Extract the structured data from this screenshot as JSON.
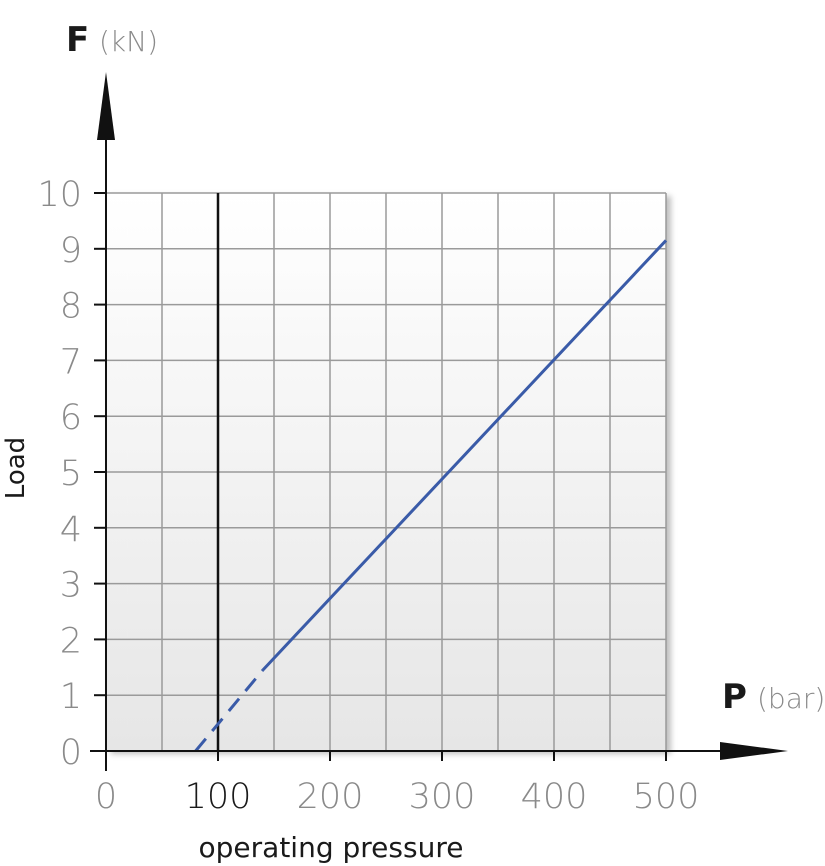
{
  "chart_data": {
    "type": "line",
    "y_axis_letter": "F",
    "y_axis_unit": "(kN)",
    "x_axis_letter": "P",
    "x_axis_unit": "(bar)",
    "ylabel": "Load",
    "xlabel": "operating pressure",
    "xlim": [
      0,
      500
    ],
    "ylim": [
      0,
      10
    ],
    "x_ticks": [
      "0",
      "100",
      "200",
      "300",
      "400",
      "500"
    ],
    "y_ticks": [
      "0",
      "1",
      "2",
      "3",
      "4",
      "5",
      "6",
      "7",
      "8",
      "9",
      "10"
    ],
    "grid": true,
    "reference_line_x": 100,
    "series": [
      {
        "style": "dashed",
        "points": [
          [
            80,
            0.0
          ],
          [
            140,
            1.45
          ]
        ]
      },
      {
        "style": "solid",
        "points": [
          [
            140,
            1.45
          ],
          [
            500,
            9.15
          ]
        ]
      }
    ],
    "colors": {
      "line": "#3a5ba8",
      "reference": "#111111",
      "grid": "#9a9a9a"
    }
  }
}
